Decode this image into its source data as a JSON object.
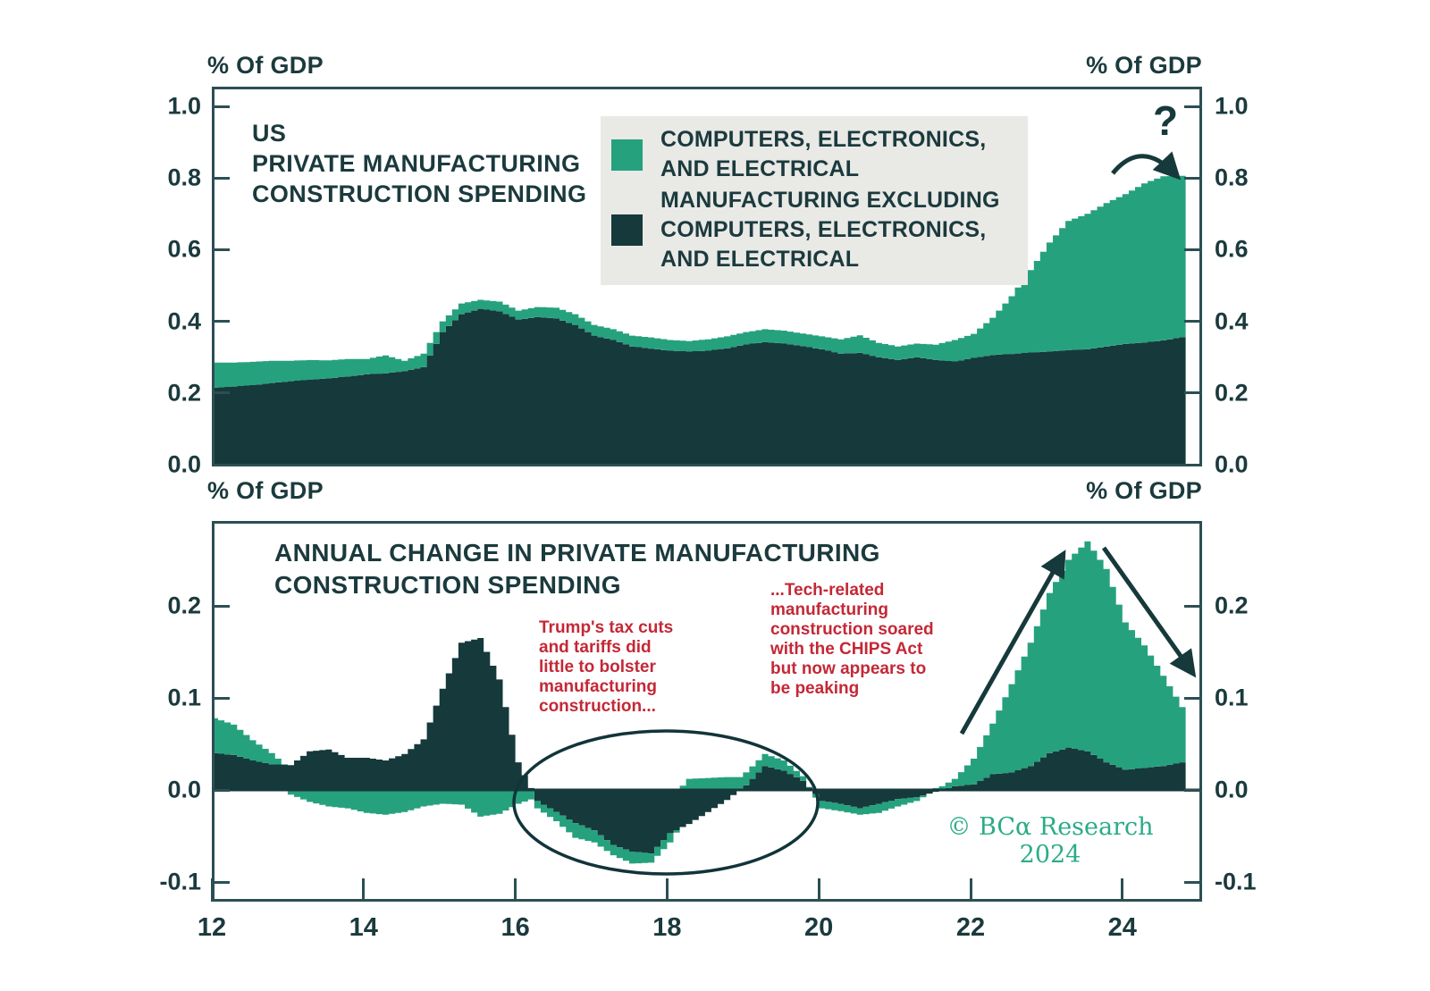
{
  "colors": {
    "green": "#26A17E",
    "dark": "#16393B",
    "axis": "#2C4F53",
    "text": "#1B3A3D",
    "red": "#C42836",
    "legend_bg": "#E9E9E6",
    "brand_green": "#2BAB87"
  },
  "top_panel": {
    "axis_label_left": "% Of GDP",
    "axis_label_right": "% Of GDP",
    "title": "US\nPRIVATE MANUFACTURING\nCONSTRUCTION SPENDING",
    "y_ticks": [
      "1.0",
      "0.8",
      "0.6",
      "0.4",
      "0.2",
      "0.0"
    ],
    "question_mark": "?",
    "legend": [
      {
        "label": "COMPUTERS, ELECTRONICS,\nAND ELECTRICAL",
        "color_key": "green"
      },
      {
        "label": "MANUFACTURING EXCLUDING\nCOMPUTERS, ELECTRONICS,\nAND ELECTRICAL",
        "color_key": "dark"
      }
    ]
  },
  "bottom_panel": {
    "axis_label_left": "% Of GDP",
    "axis_label_right": "% Of GDP",
    "title": "ANNUAL CHANGE IN PRIVATE MANUFACTURING\nCONSTRUCTION SPENDING",
    "y_ticks": [
      "0.2",
      "0.1",
      "0.0",
      "-0.1"
    ],
    "x_ticks": [
      "12",
      "14",
      "16",
      "18",
      "20",
      "22",
      "24"
    ],
    "annotations": {
      "tax_cuts": "Trump's tax cuts\nand tariffs did\nlittle to bolster\nmanufacturing\nconstruction...",
      "chips": "...Tech-related\nmanufacturing\nconstruction soared\nwith the CHIPS Act\nbut now appears to\nbe peaking"
    },
    "copyright": "© BCα Research 2024"
  },
  "chart_data": [
    {
      "type": "bar",
      "stacked": true,
      "title": "US PRIVATE MANUFACTURING CONSTRUCTION SPENDING",
      "ylabel": "% Of GDP",
      "ylim": [
        0.0,
        1.0
      ],
      "x_years": [
        12,
        12.25,
        12.5,
        12.75,
        13,
        13.25,
        13.5,
        13.75,
        14,
        14.25,
        14.5,
        14.75,
        15,
        15.25,
        15.5,
        15.75,
        16,
        16.25,
        16.5,
        16.75,
        17,
        17.25,
        17.5,
        17.75,
        18,
        18.25,
        18.5,
        18.75,
        19,
        19.25,
        19.5,
        19.75,
        20,
        20.25,
        20.5,
        20.75,
        21,
        21.25,
        21.5,
        21.75,
        22,
        22.25,
        22.5,
        22.75,
        23,
        23.25,
        23.5,
        23.75,
        24,
        24.25,
        24.5,
        24.75
      ],
      "series": [
        {
          "name": "MANUFACTURING EXCLUDING COMPUTERS, ELECTRONICS, AND ELECTRICAL",
          "color_key": "dark",
          "values": [
            0.215,
            0.218,
            0.222,
            0.228,
            0.233,
            0.237,
            0.241,
            0.246,
            0.252,
            0.255,
            0.261,
            0.272,
            0.37,
            0.42,
            0.435,
            0.428,
            0.405,
            0.412,
            0.408,
            0.39,
            0.36,
            0.348,
            0.33,
            0.324,
            0.318,
            0.316,
            0.318,
            0.325,
            0.336,
            0.342,
            0.338,
            0.331,
            0.322,
            0.31,
            0.312,
            0.3,
            0.292,
            0.3,
            0.292,
            0.288,
            0.298,
            0.306,
            0.309,
            0.313,
            0.316,
            0.32,
            0.322,
            0.33,
            0.337,
            0.341,
            0.347,
            0.356
          ]
        },
        {
          "name": "COMPUTERS, ELECTRONICS, AND ELECTRICAL",
          "color_key": "green",
          "values": [
            0.07,
            0.067,
            0.065,
            0.062,
            0.057,
            0.055,
            0.05,
            0.049,
            0.043,
            0.05,
            0.029,
            0.038,
            0.03,
            0.03,
            0.025,
            0.027,
            0.025,
            0.028,
            0.03,
            0.03,
            0.03,
            0.03,
            0.03,
            0.031,
            0.03,
            0.029,
            0.032,
            0.033,
            0.034,
            0.036,
            0.036,
            0.035,
            0.036,
            0.04,
            0.049,
            0.04,
            0.038,
            0.038,
            0.043,
            0.06,
            0.067,
            0.104,
            0.161,
            0.23,
            0.304,
            0.36,
            0.378,
            0.4,
            0.418,
            0.444,
            0.458,
            0.45
          ]
        }
      ]
    },
    {
      "type": "bar",
      "stacked": true,
      "title": "ANNUAL CHANGE IN PRIVATE MANUFACTURING CONSTRUCTION SPENDING",
      "ylabel": "% Of GDP",
      "ylim": [
        -0.115,
        0.29
      ],
      "x_years": [
        12,
        12.25,
        12.5,
        12.75,
        13,
        13.25,
        13.5,
        13.75,
        14,
        14.25,
        14.5,
        14.75,
        15,
        15.25,
        15.5,
        15.75,
        16,
        16.25,
        16.5,
        16.75,
        17,
        17.25,
        17.5,
        17.75,
        18,
        18.25,
        18.5,
        18.75,
        19,
        19.25,
        19.5,
        19.75,
        20,
        20.25,
        20.5,
        20.75,
        21,
        21.25,
        21.5,
        21.75,
        22,
        22.25,
        22.5,
        22.75,
        23,
        23.25,
        23.5,
        23.75,
        24,
        24.25,
        24.5,
        24.75
      ],
      "series": [
        {
          "name": "MANUFACTURING EXCLUDING COMPUTERS, ELECTRONICS, AND ELECTRICAL",
          "color_key": "dark",
          "values": [
            0.04,
            0.038,
            0.032,
            0.028,
            0.027,
            0.042,
            0.044,
            0.035,
            0.035,
            0.032,
            0.039,
            0.055,
            0.11,
            0.16,
            0.165,
            0.12,
            0.03,
            -0.012,
            -0.024,
            -0.036,
            -0.044,
            -0.06,
            -0.067,
            -0.069,
            -0.047,
            -0.037,
            -0.024,
            -0.011,
            0.005,
            0.026,
            0.021,
            0.01,
            -0.012,
            -0.015,
            -0.02,
            -0.015,
            -0.01,
            -0.008,
            -0.002,
            0.004,
            0.006,
            0.017,
            0.019,
            0.026,
            0.04,
            0.046,
            0.042,
            0.03,
            0.022,
            0.024,
            0.026,
            0.03
          ]
        },
        {
          "name": "COMPUTERS, ELECTRONICS, AND ELECTRICAL",
          "color_key": "green",
          "values": [
            0.038,
            0.033,
            0.022,
            0.012,
            -0.005,
            -0.013,
            -0.018,
            -0.02,
            -0.025,
            -0.027,
            -0.024,
            -0.018,
            -0.015,
            -0.016,
            -0.029,
            -0.026,
            -0.015,
            -0.008,
            -0.01,
            -0.016,
            -0.013,
            -0.011,
            -0.013,
            -0.01,
            -0.01,
            0.012,
            0.013,
            0.014,
            0.014,
            0.013,
            0.011,
            0.005,
            -0.008,
            -0.008,
            -0.007,
            -0.01,
            -0.008,
            -0.004,
            0.002,
            0.008,
            0.028,
            0.055,
            0.096,
            0.134,
            0.174,
            0.204,
            0.228,
            0.21,
            0.16,
            0.133,
            0.098,
            0.06
          ]
        }
      ]
    }
  ]
}
